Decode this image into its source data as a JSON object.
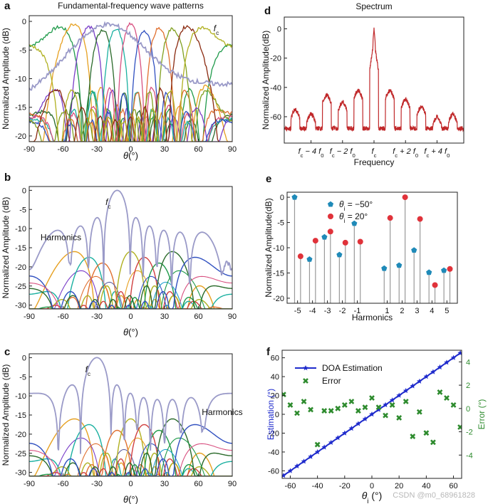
{
  "watermark": "CSDN @m0_68961828",
  "colors": {
    "spectrum": "#c0282a",
    "fc_curve": "#9a9ac8",
    "stem": "#999999",
    "blue_marker": "#1f8ab8",
    "red_marker": "#e0323a",
    "doa": "#1f2bcc",
    "error": "#2e8b2e",
    "palette": [
      "#1f9a4a",
      "#e6a020",
      "#7a3ec8",
      "#2a6a2a",
      "#1ab0a0",
      "#d85080",
      "#3050c0",
      "#e07030",
      "#80a020",
      "#8a2a10",
      "#b0b020",
      "#20a0d0",
      "#6060a0",
      "#d04040",
      "#50a050",
      "#203080"
    ]
  },
  "chart_data": [
    {
      "panel": "a",
      "type": "line",
      "title": "Fundamental-frequency wave patterns",
      "xlabel": "θ(°)",
      "ylabel": "Normalized Amplitude (dB)",
      "xlim": [
        -90,
        90
      ],
      "ylim": [
        -21,
        1
      ],
      "xticks": [
        -90,
        -60,
        -30,
        0,
        30,
        60,
        90
      ],
      "yticks": [
        0,
        -5,
        -10,
        -15,
        -20
      ],
      "annotations": [
        {
          "text": "f",
          "sub": "c",
          "x": 72,
          "y": -0.5
        }
      ],
      "beam_peaks": [
        -63,
        -50,
        -37,
        -25,
        -13,
        0,
        12,
        25,
        37,
        50,
        63
      ],
      "grid": false
    },
    {
      "panel": "b",
      "type": "line",
      "xlabel": "θ(°)",
      "ylabel": "Normalized Amplitude (dB)",
      "xlim": [
        -90,
        90
      ],
      "ylim": [
        -31,
        1
      ],
      "xticks": [
        -90,
        -60,
        -30,
        0,
        30,
        60,
        90
      ],
      "yticks": [
        0,
        -5,
        -10,
        -15,
        -20,
        -25,
        -30
      ],
      "fc_peak": -12,
      "harmonic_peaks": [
        -50,
        -37,
        -25,
        0,
        12,
        25,
        37,
        57
      ],
      "annotations": [
        {
          "text": "f",
          "sub": "c",
          "x": -20,
          "y": -2
        },
        {
          "text": "Harmonics",
          "x": -80,
          "y": -13
        }
      ],
      "grid": false
    },
    {
      "panel": "c",
      "type": "line",
      "xlabel": "θ(°)",
      "ylabel": "Normalized Amplitude (dB)",
      "xlim": [
        -90,
        90
      ],
      "ylim": [
        -31,
        1
      ],
      "xticks": [
        -90,
        -60,
        -30,
        0,
        30,
        60,
        90
      ],
      "yticks": [
        0,
        -5,
        -10,
        -15,
        -20,
        -25,
        -30
      ],
      "fc_peak": -30,
      "harmonic_peaks": [
        -50,
        -37,
        -12,
        0,
        12,
        25,
        37,
        57
      ],
      "annotations": [
        {
          "text": "f",
          "sub": "c",
          "x": -38,
          "y": -2
        },
        {
          "text": "Harmonics",
          "x": 63,
          "y": -15
        }
      ],
      "grid": false
    },
    {
      "panel": "d",
      "type": "line",
      "title": "Spectrum",
      "xlabel": "Frequency",
      "ylabel": "Normalized Amplitude(dB)",
      "ylim": [
        -78,
        8
      ],
      "yticks": [
        0,
        -20,
        -40,
        -60
      ],
      "xtick_labels": [
        {
          "pre": "f",
          "sub": "c",
          "post": " − 4 f",
          "sub2": "0",
          "pos": -4
        },
        {
          "pre": "f",
          "sub": "c",
          "post": " − 2 f",
          "sub2": "0",
          "pos": -2
        },
        {
          "pre": "f",
          "sub": "c",
          "post": "",
          "sub2": "",
          "pos": 0
        },
        {
          "pre": "f",
          "sub": "c",
          "post": " + 2 f",
          "sub2": "0",
          "pos": 2
        },
        {
          "pre": "f",
          "sub": "c",
          "post": " + 4 f",
          "sub2": "0",
          "pos": 4
        }
      ],
      "peaks": [
        {
          "harmonic": -5,
          "level": -55
        },
        {
          "harmonic": -4,
          "level": -58
        },
        {
          "harmonic": -3,
          "level": -45
        },
        {
          "harmonic": -2,
          "level": -50
        },
        {
          "harmonic": -1,
          "level": -42
        },
        {
          "harmonic": 0,
          "level": 0
        },
        {
          "harmonic": 1,
          "level": -42
        },
        {
          "harmonic": 2,
          "level": -48
        },
        {
          "harmonic": 3,
          "level": -53
        },
        {
          "harmonic": 4,
          "level": -60
        },
        {
          "harmonic": 5,
          "level": -58
        }
      ],
      "noise_floor": -68,
      "grid": false
    },
    {
      "panel": "e",
      "type": "scatter",
      "xlabel": "Harmonics",
      "ylabel": "Normalized Amplitude(dB)",
      "xlim": [
        -5.7,
        5.7
      ],
      "ylim": [
        -21,
        1
      ],
      "xticks": [
        -5,
        -4,
        -3,
        -2,
        -1,
        1,
        2,
        3,
        4,
        5
      ],
      "yticks": [
        0,
        -5,
        -10,
        -15,
        -20
      ],
      "legend_position": "top",
      "series": [
        {
          "name": "θ",
          "sub": "i",
          "eq": " = −50°",
          "marker": "pentagon",
          "x": [
            -5,
            -4,
            -3,
            -2,
            -1,
            1,
            2,
            3,
            4,
            5
          ],
          "values": [
            0,
            -12.3,
            -7.9,
            -11.4,
            -5.2,
            -14.1,
            -13.5,
            -10.5,
            -14.9,
            -14.5
          ]
        },
        {
          "name": "θ",
          "sub": "i",
          "eq": " = 20°",
          "marker": "circle",
          "x": [
            -5,
            -4,
            -3,
            -2,
            -1,
            1,
            2,
            3,
            4,
            5
          ],
          "values": [
            -11.7,
            -8.6,
            -6.8,
            -9.0,
            -8.8,
            -4.1,
            0,
            -4.3,
            -17.4,
            -14.2
          ]
        }
      ],
      "grid": false
    },
    {
      "panel": "f",
      "type": "scatter",
      "xlabel": "θ",
      "xlabel_sub": "i",
      "xlabel_unit": " (°)",
      "ylabel": "Estimation (°)",
      "ylabel_right": "Error (°)",
      "xlim": [
        -66,
        66
      ],
      "ylim": [
        -68,
        68
      ],
      "ylim_right": [
        -6,
        5
      ],
      "xticks": [
        -60,
        -40,
        -20,
        0,
        20,
        40,
        60
      ],
      "yticks": [
        -60,
        -40,
        -20,
        0,
        20,
        40,
        60
      ],
      "yticks_right": [
        4,
        2,
        0,
        -2,
        -4
      ],
      "legend_position": "top-left",
      "series": [
        {
          "name": "DOA Estimation",
          "marker": "star-line",
          "x": [
            -65,
            -60,
            -55,
            -50,
            -45,
            -40,
            -35,
            -30,
            -25,
            -20,
            -15,
            -10,
            -5,
            0,
            5,
            10,
            15,
            20,
            25,
            30,
            35,
            40,
            45,
            50,
            55,
            60,
            65
          ],
          "values": [
            -65,
            -60,
            -55,
            -50,
            -45,
            -40,
            -35,
            -30,
            -25,
            -20,
            -15,
            -10,
            -5,
            0,
            5,
            10,
            15,
            20,
            25,
            30,
            35,
            40,
            45,
            50,
            55,
            60,
            65
          ]
        },
        {
          "name": "Error",
          "marker": "x",
          "x": [
            -65,
            -60,
            -55,
            -50,
            -45,
            -40,
            -35,
            -30,
            -25,
            -20,
            -15,
            -10,
            -5,
            0,
            5,
            10,
            15,
            20,
            25,
            30,
            35,
            40,
            45,
            50,
            55,
            60,
            65
          ],
          "values": [
            1.2,
            0.3,
            -0.4,
            0.6,
            -0.1,
            -3.1,
            -0.2,
            -0.2,
            0.0,
            0.3,
            0.6,
            -0.2,
            0.1,
            0.9,
            0.1,
            -0.6,
            0.3,
            -0.8,
            0.6,
            -2.4,
            -0.3,
            -2.1,
            -2.9,
            1.4,
            0.9,
            0.3,
            -1.6
          ]
        }
      ],
      "grid": false
    }
  ]
}
